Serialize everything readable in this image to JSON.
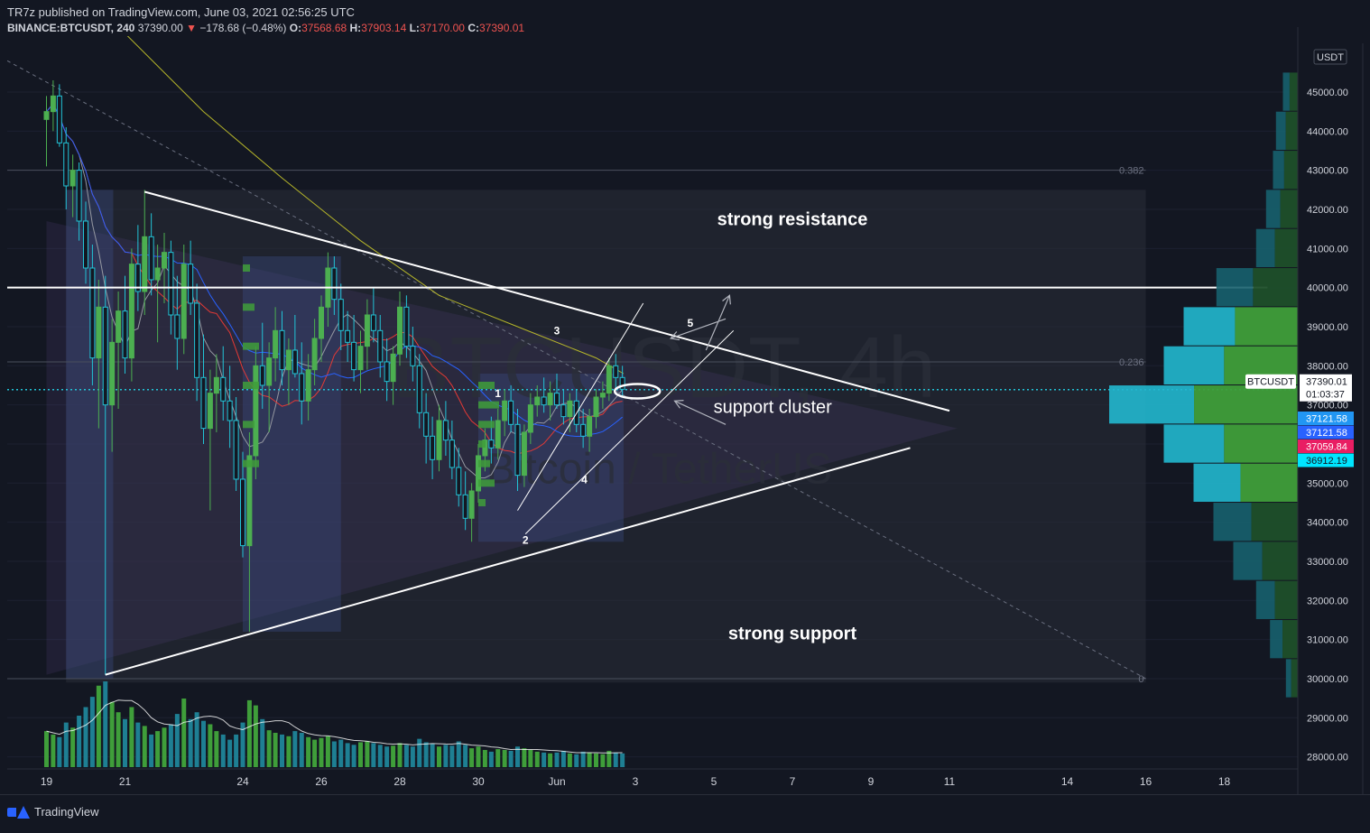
{
  "header": {
    "publisher": "TR7z published on TradingView.com, June 03, 2021 02:56:25 UTC",
    "symbol": "BINANCE:BTCUSDT, 240",
    "price": "37390.00",
    "change": "−178.68 (−0.48%)",
    "open_label": "O:",
    "open": "37568.68",
    "high_label": "H:",
    "high": "37903.14",
    "low_label": "L:",
    "low": "37170.00",
    "close_label": "C:",
    "close": "37390.01"
  },
  "footer": {
    "brand": "TradingView"
  },
  "colors": {
    "background": "#131722",
    "up": "#26a69a",
    "down": "#ef5350",
    "green_candle": "#4caf50",
    "cyan_candle": "#22c3d6",
    "accent_blue": "#2962ff"
  },
  "chart_data": {
    "type": "candlestick",
    "watermark": "BTCUSDT, 4h",
    "watermark_sub": "Bitcoin / TetherUS",
    "currency": "USDT",
    "ylim": [
      27500,
      46500
    ],
    "y_ticks": [
      28000,
      29000,
      30000,
      31000,
      32000,
      33000,
      34000,
      35000,
      36000,
      37000,
      38000,
      39000,
      40000,
      41000,
      42000,
      43000,
      44000,
      45000
    ],
    "y_tick_labels": [
      "28000.00",
      "29000.00",
      "30000.00",
      "31000.00",
      "32000.00",
      "33000.00",
      "34000.00",
      "35000.00",
      "36000.00",
      "37000.00",
      "38000.00",
      "39000.00",
      "40000.00",
      "41000.00",
      "42000.00",
      "43000.00",
      "44000.00",
      "45000.00"
    ],
    "x_ticks": [
      {
        "day": 0,
        "label": "19"
      },
      {
        "day": 2,
        "label": "21"
      },
      {
        "day": 5,
        "label": "24"
      },
      {
        "day": 7,
        "label": "26"
      },
      {
        "day": 9,
        "label": "28"
      },
      {
        "day": 11,
        "label": "30"
      },
      {
        "day": 13,
        "label": "Jun"
      },
      {
        "day": 15,
        "label": "3"
      },
      {
        "day": 17,
        "label": "5"
      },
      {
        "day": 19,
        "label": "7"
      },
      {
        "day": 21,
        "label": "9"
      },
      {
        "day": 23,
        "label": "11"
      },
      {
        "day": 26,
        "label": "14"
      },
      {
        "day": 28,
        "label": "16"
      },
      {
        "day": 30,
        "label": "18"
      }
    ],
    "price_labels": [
      {
        "value": 37390.01,
        "text": "37390.01",
        "sub": "01:03:37",
        "tag": "BTCUSDT",
        "bg": "#ffffff",
        "fg": "#131722"
      },
      {
        "value": 37121.58,
        "text": "37121.58",
        "bg": "#2196f3",
        "fg": "#ffffff",
        "offset": 0
      },
      {
        "value": 37121.58,
        "text": "37121.58",
        "bg": "#2962ff",
        "fg": "#ffffff",
        "offset": 1
      },
      {
        "value": 37059.84,
        "text": "37059.84",
        "bg": "#e91e63",
        "fg": "#ffffff",
        "offset": 2
      },
      {
        "value": 36912.19,
        "text": "36912.19",
        "bg": "#00e5ff",
        "fg": "#131722",
        "offset": 3
      }
    ],
    "fib_levels": [
      {
        "value": 43000,
        "label": "0.382"
      },
      {
        "value": 38100,
        "label": "0.236"
      },
      {
        "value": 30000,
        "label": "0"
      }
    ],
    "horizontal_level": 40000,
    "current_price_line": 37390,
    "triangle": {
      "upper": [
        {
          "day": 2.5,
          "price": 42450
        },
        {
          "day": 23,
          "price": 36850
        }
      ],
      "lower": [
        {
          "day": 1.5,
          "price": 30100
        },
        {
          "day": 22,
          "price": 35900
        }
      ]
    },
    "annotations": [
      {
        "text": "strong resistance",
        "day": 19,
        "price": 41600
      },
      {
        "text": "support cluster",
        "day": 18.5,
        "price": 36800
      },
      {
        "text": "strong support",
        "day": 19,
        "price": 31000
      },
      {
        "text": "1",
        "day": 11.5,
        "price": 37200
      },
      {
        "text": "2",
        "day": 12.2,
        "price": 33450
      },
      {
        "text": "3",
        "day": 13,
        "price": 38800
      },
      {
        "text": "4",
        "day": 13.7,
        "price": 35000
      },
      {
        "text": "5",
        "day": 16.4,
        "price": 39000
      }
    ],
    "candles": [
      [
        0.0,
        44300,
        44900,
        43100,
        44500
      ],
      [
        0.17,
        44500,
        45300,
        44000,
        44900
      ],
      [
        0.33,
        44900,
        45200,
        43600,
        43700
      ],
      [
        0.5,
        43700,
        44100,
        42000,
        42600
      ],
      [
        0.67,
        42600,
        43400,
        41800,
        43000
      ],
      [
        0.83,
        43000,
        43200,
        41200,
        41700
      ],
      [
        1.0,
        41700,
        42200,
        40100,
        40500
      ],
      [
        1.17,
        40500,
        41100,
        37500,
        38200
      ],
      [
        1.33,
        38200,
        40200,
        36400,
        39500
      ],
      [
        1.5,
        39500,
        40300,
        30100,
        37000
      ],
      [
        1.67,
        37000,
        39200,
        35800,
        38600
      ],
      [
        1.83,
        38600,
        39900,
        36900,
        39400
      ],
      [
        2.0,
        39400,
        40300,
        37800,
        38200
      ],
      [
        2.17,
        38200,
        41000,
        37600,
        40600
      ],
      [
        2.33,
        40600,
        41600,
        39400,
        39900
      ],
      [
        2.5,
        39900,
        42500,
        39300,
        41300
      ],
      [
        2.67,
        41300,
        41900,
        39800,
        40200
      ],
      [
        2.83,
        40200,
        41100,
        38600,
        40500
      ],
      [
        3.0,
        40500,
        41400,
        39600,
        40900
      ],
      [
        3.17,
        40900,
        41200,
        38800,
        39300
      ],
      [
        3.33,
        39300,
        40300,
        37900,
        38700
      ],
      [
        3.5,
        38700,
        41100,
        38300,
        40600
      ],
      [
        3.67,
        40600,
        41200,
        39300,
        39600
      ],
      [
        3.83,
        39600,
        40100,
        37100,
        37700
      ],
      [
        4.0,
        37700,
        38800,
        36000,
        36400
      ],
      [
        4.17,
        36400,
        37900,
        34300,
        37300
      ],
      [
        4.33,
        37300,
        38300,
        36300,
        37700
      ],
      [
        4.5,
        37700,
        38500,
        36600,
        37100
      ],
      [
        4.67,
        37100,
        38000,
        35900,
        36600
      ],
      [
        4.83,
        36600,
        37200,
        34800,
        35100
      ],
      [
        5.0,
        35100,
        35800,
        33100,
        33400
      ],
      [
        5.17,
        33400,
        36300,
        31200,
        35700
      ],
      [
        5.33,
        35700,
        38500,
        35100,
        38000
      ],
      [
        5.5,
        38000,
        39100,
        36900,
        37500
      ],
      [
        5.67,
        37500,
        38600,
        36300,
        38200
      ],
      [
        5.83,
        38200,
        39500,
        37600,
        38900
      ],
      [
        6.0,
        38900,
        39400,
        37500,
        37900
      ],
      [
        6.17,
        37900,
        38700,
        37000,
        38400
      ],
      [
        6.33,
        38400,
        39300,
        37700,
        37800
      ],
      [
        6.5,
        37800,
        38600,
        36500,
        37100
      ],
      [
        6.67,
        37100,
        38300,
        36600,
        37900
      ],
      [
        6.83,
        37900,
        39200,
        37500,
        38700
      ],
      [
        7.0,
        38700,
        39800,
        38100,
        39500
      ],
      [
        7.17,
        39500,
        40900,
        39000,
        40500
      ],
      [
        7.33,
        40500,
        40800,
        39300,
        39700
      ],
      [
        7.5,
        39700,
        40100,
        38400,
        38900
      ],
      [
        7.67,
        38900,
        39400,
        38100,
        38600
      ],
      [
        7.83,
        38600,
        39300,
        37600,
        37900
      ],
      [
        8.0,
        37900,
        38900,
        37300,
        38500
      ],
      [
        8.17,
        38500,
        39700,
        37900,
        39300
      ],
      [
        8.33,
        39300,
        40000,
        38600,
        38900
      ],
      [
        8.5,
        38900,
        39300,
        37700,
        38100
      ],
      [
        8.67,
        38100,
        38700,
        37100,
        37600
      ],
      [
        8.83,
        37600,
        38500,
        37000,
        38300
      ],
      [
        9.0,
        38300,
        39900,
        38000,
        39500
      ],
      [
        9.17,
        39500,
        39800,
        38200,
        38500
      ],
      [
        9.33,
        38500,
        39000,
        37600,
        38000
      ],
      [
        9.5,
        38000,
        38300,
        36400,
        36800
      ],
      [
        9.67,
        36800,
        37300,
        35500,
        36200
      ],
      [
        9.83,
        36200,
        36700,
        35100,
        35600
      ],
      [
        10.0,
        35600,
        37000,
        35300,
        36600
      ],
      [
        10.17,
        36600,
        37100,
        35700,
        36100
      ],
      [
        10.33,
        36100,
        36600,
        35100,
        35400
      ],
      [
        10.5,
        35400,
        35900,
        34400,
        34700
      ],
      [
        10.67,
        34700,
        35300,
        33800,
        34100
      ],
      [
        10.83,
        34100,
        35000,
        33500,
        34800
      ],
      [
        11.0,
        34800,
        36000,
        34500,
        35700
      ],
      [
        11.17,
        35700,
        36400,
        35300,
        36100
      ],
      [
        11.33,
        36100,
        36700,
        35500,
        35900
      ],
      [
        11.5,
        35900,
        36900,
        35600,
        36600
      ],
      [
        11.67,
        36600,
        37400,
        36200,
        37100
      ],
      [
        11.83,
        37100,
        37500,
        36300,
        36500
      ],
      [
        12.0,
        36500,
        36900,
        34800,
        35200
      ],
      [
        12.17,
        35200,
        36500,
        34900,
        36300
      ],
      [
        12.33,
        36300,
        37300,
        36000,
        37000
      ],
      [
        12.5,
        37000,
        37500,
        36700,
        37200
      ],
      [
        12.67,
        37200,
        37700,
        36800,
        37000
      ],
      [
        12.83,
        37000,
        37600,
        36600,
        37300
      ],
      [
        13.0,
        37300,
        37800,
        36900,
        37000
      ],
      [
        13.17,
        37000,
        37400,
        36500,
        36700
      ],
      [
        13.33,
        36700,
        37300,
        36300,
        37100
      ],
      [
        13.5,
        37100,
        37400,
        36300,
        36500
      ],
      [
        13.67,
        36500,
        36900,
        35900,
        36200
      ],
      [
        13.83,
        36200,
        36900,
        35800,
        36700
      ],
      [
        14.0,
        36700,
        37400,
        36400,
        37200
      ],
      [
        14.17,
        37200,
        37600,
        36900,
        37300
      ],
      [
        14.33,
        37300,
        38200,
        37100,
        38000
      ],
      [
        14.5,
        38000,
        38300,
        37400,
        37700
      ],
      [
        14.67,
        37700,
        38000,
        37200,
        37400
      ]
    ],
    "volume": [
      [
        0.0,
        420
      ],
      [
        0.17,
        380
      ],
      [
        0.33,
        350
      ],
      [
        0.5,
        520
      ],
      [
        0.67,
        460
      ],
      [
        0.83,
        600
      ],
      [
        1.0,
        700
      ],
      [
        1.17,
        820
      ],
      [
        1.33,
        950
      ],
      [
        1.5,
        1000
      ],
      [
        1.67,
        760
      ],
      [
        1.83,
        640
      ],
      [
        2.0,
        560
      ],
      [
        2.17,
        700
      ],
      [
        2.33,
        520
      ],
      [
        2.5,
        480
      ],
      [
        2.67,
        380
      ],
      [
        2.83,
        420
      ],
      [
        3.0,
        460
      ],
      [
        3.17,
        500
      ],
      [
        3.33,
        620
      ],
      [
        3.5,
        800
      ],
      [
        3.67,
        560
      ],
      [
        3.83,
        640
      ],
      [
        4.0,
        540
      ],
      [
        4.17,
        500
      ],
      [
        4.33,
        420
      ],
      [
        4.5,
        380
      ],
      [
        4.67,
        320
      ],
      [
        4.83,
        380
      ],
      [
        5.0,
        520
      ],
      [
        5.17,
        780
      ],
      [
        5.33,
        720
      ],
      [
        5.5,
        560
      ],
      [
        5.67,
        430
      ],
      [
        5.83,
        400
      ],
      [
        6.0,
        380
      ],
      [
        6.17,
        360
      ],
      [
        6.33,
        420
      ],
      [
        6.5,
        400
      ],
      [
        6.67,
        350
      ],
      [
        6.83,
        320
      ],
      [
        7.0,
        340
      ],
      [
        7.17,
        360
      ],
      [
        7.33,
        300
      ],
      [
        7.5,
        320
      ],
      [
        7.67,
        280
      ],
      [
        7.83,
        260
      ],
      [
        8.0,
        290
      ],
      [
        8.17,
        300
      ],
      [
        8.33,
        280
      ],
      [
        8.5,
        260
      ],
      [
        8.67,
        240
      ],
      [
        8.83,
        250
      ],
      [
        9.0,
        280
      ],
      [
        9.17,
        260
      ],
      [
        9.33,
        240
      ],
      [
        9.5,
        330
      ],
      [
        9.67,
        290
      ],
      [
        9.83,
        270
      ],
      [
        10.0,
        240
      ],
      [
        10.17,
        260
      ],
      [
        10.33,
        250
      ],
      [
        10.5,
        300
      ],
      [
        10.67,
        260
      ],
      [
        10.83,
        220
      ],
      [
        11.0,
        240
      ],
      [
        11.17,
        200
      ],
      [
        11.33,
        180
      ],
      [
        11.5,
        210
      ],
      [
        11.67,
        200
      ],
      [
        11.83,
        190
      ],
      [
        12.0,
        240
      ],
      [
        12.17,
        220
      ],
      [
        12.33,
        200
      ],
      [
        12.5,
        180
      ],
      [
        12.67,
        170
      ],
      [
        12.83,
        160
      ],
      [
        13.0,
        170
      ],
      [
        13.17,
        190
      ],
      [
        13.33,
        160
      ],
      [
        13.5,
        150
      ],
      [
        13.67,
        180
      ],
      [
        13.83,
        170
      ],
      [
        14.0,
        160
      ],
      [
        14.17,
        150
      ],
      [
        14.33,
        190
      ],
      [
        14.5,
        170
      ],
      [
        14.67,
        160
      ]
    ],
    "volume_profile": [
      [
        45000,
        0.15
      ],
      [
        44000,
        0.22
      ],
      [
        43000,
        0.25
      ],
      [
        42000,
        0.32
      ],
      [
        41000,
        0.42
      ],
      [
        40000,
        0.82
      ],
      [
        39000,
        1.15
      ],
      [
        38000,
        1.35
      ],
      [
        37000,
        1.9
      ],
      [
        36000,
        1.35
      ],
      [
        35000,
        1.05
      ],
      [
        34000,
        0.85
      ],
      [
        33000,
        0.65
      ],
      [
        32000,
        0.42
      ],
      [
        31000,
        0.28
      ],
      [
        30000,
        0.12
      ]
    ]
  }
}
